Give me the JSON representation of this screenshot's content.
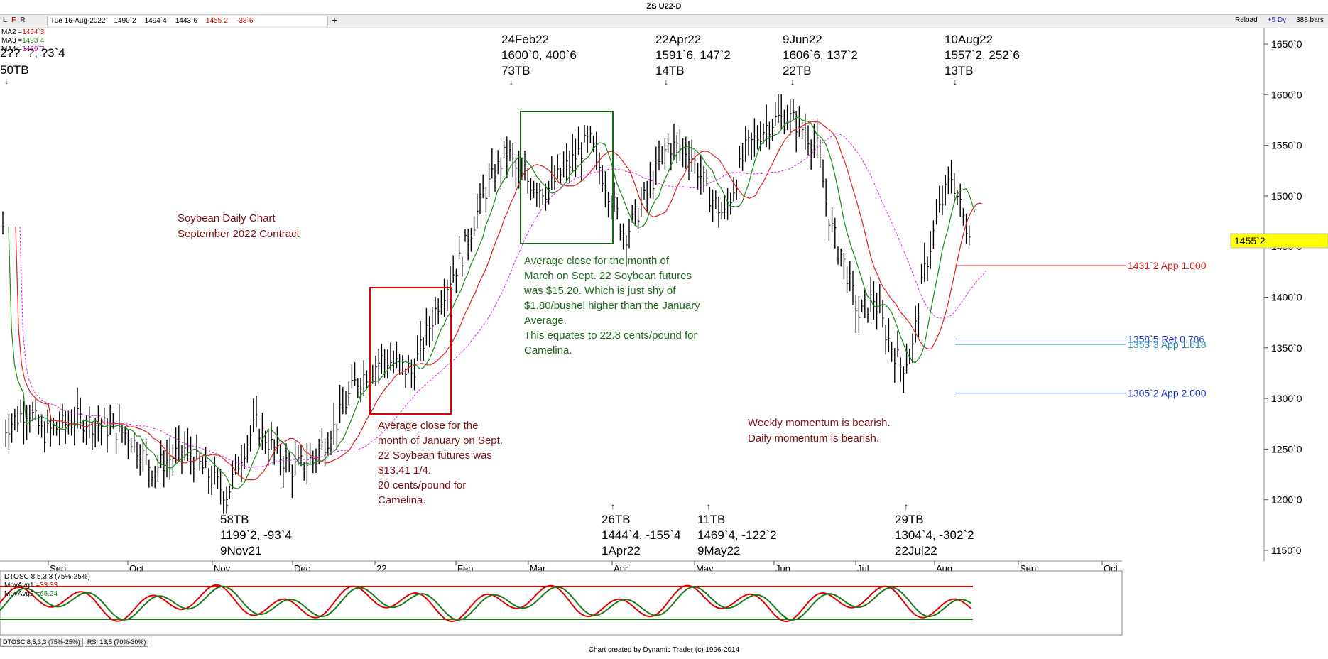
{
  "window": {
    "title": "ZS U22-D"
  },
  "toolbar": {
    "lfr": [
      "L",
      "F",
      "R"
    ],
    "quote": {
      "date": "Tue 16-Aug-2022",
      "open": "1490`2",
      "high": "1494`4",
      "low": "1443`6",
      "close": "1455`2",
      "change": "-38`6"
    },
    "reload_label": "Reload",
    "scroll_label": "+5 Dy",
    "bars_label": "388 bars"
  },
  "ma_panel": [
    {
      "label": "MA2 =",
      "value": "1454`3",
      "color": "#d00000"
    },
    {
      "label": "MA3 =",
      "value": "1493`4",
      "color": "#1a8a1a"
    },
    {
      "label": "MA4 =",
      "value": "1429`7",
      "color": "#d000d0"
    }
  ],
  "price_axis": {
    "ticks": [
      "1650`0",
      "1600`0",
      "1550`0",
      "1500`0",
      "1450`0",
      "1400`0",
      "1350`0",
      "1300`0",
      "1250`0",
      "1200`0",
      "1150`0"
    ],
    "current_price": "1455`2",
    "current_color": "#ffff00"
  },
  "time_axis": [
    "Sep",
    "Oct",
    "Nov",
    "Dec",
    "22",
    "Feb",
    "Mar",
    "Apr",
    "May",
    "Jun",
    "Jul",
    "Aug",
    "Sep",
    "Oct"
  ],
  "chart_title_lines": [
    "Soybean Daily Chart",
    "September 2022 Contract"
  ],
  "pivot_labels": [
    {
      "lines": [
        "2?? `?, ?3`4",
        "50TB"
      ]
    },
    {
      "lines": [
        "24Feb22",
        "1600`0, 400`6",
        "73TB"
      ]
    },
    {
      "lines": [
        "22Apr22",
        "1591`6, 147`2",
        "14TB"
      ]
    },
    {
      "lines": [
        "9Jun22",
        "1606`6, 137`2",
        "22TB"
      ]
    },
    {
      "lines": [
        "10Aug22",
        "1557`2, 252`6",
        "13TB"
      ]
    },
    {
      "lines": [
        "58TB",
        "1199`2, -93`4",
        "9Nov21"
      ]
    },
    {
      "lines": [
        "26TB",
        "1444`4, -155`4",
        "1Apr22"
      ]
    },
    {
      "lines": [
        "11TB",
        "1469`4, -122`2",
        "9May22"
      ]
    },
    {
      "lines": [
        "29TB",
        "1304`4, -302`2",
        "22Jul22"
      ]
    }
  ],
  "annotations": {
    "march": [
      "Average close for the month of",
      "March on Sept. 22 Soybean futures",
      "was $15.20. Which is just shy of",
      "$1.80/bushel higher than the January",
      "Average.",
      "This equates to 22.8 cents/pound for",
      "Camelina."
    ],
    "january": [
      "Average close for the",
      "month of January on Sept.",
      "22 Soybean futures was",
      "$13.41 1/4.",
      "20 cents/pound for",
      "Camelina."
    ],
    "momentum": [
      "Weekly momentum is bearish.",
      "Daily momentum is bearish."
    ]
  },
  "target_levels": [
    {
      "label": "1431`2 App 1.000",
      "price": 1431.25,
      "color": "#e02020"
    },
    {
      "label": "1358`5 Ret 0.786",
      "price": 1358.6,
      "color": "#1a37c4"
    },
    {
      "label": "1353`3 App 1.618",
      "price": 1353.4,
      "color": "#2a8aa0"
    },
    {
      "label": "1305`2 App 2.000",
      "price": 1305.25,
      "color": "#1a37c4"
    }
  ],
  "oscillator": {
    "legend": [
      {
        "label": "DTOSC 8,5,3,3 (75%-25%)",
        "color": "#000000"
      },
      {
        "label": "MovAvg1 =",
        "value": "33.33",
        "color": "#d00000"
      },
      {
        "label": "MovAvg2 =",
        "value": "65.24",
        "color": "#1a8a1a"
      }
    ],
    "tabs": [
      "DTOSC 8,5,3,3 (75%-25%)",
      "RSI 13,5 (70%-30%)"
    ]
  },
  "footer": "Chart created by Dynamic Trader  (c)  1996-2014",
  "chart_data": {
    "type": "line",
    "title": "ZS U22-D",
    "x": [
      "Sep-21",
      "Oct-21",
      "Nov-21",
      "Dec-21",
      "Jan-22",
      "Feb-22",
      "Mar-22",
      "Apr-22",
      "May-22",
      "Jun-22",
      "Jul-22",
      "Aug-22"
    ],
    "series": [
      {
        "name": "Close",
        "values": [
          1275,
          1245,
          1225,
          1260,
          1330,
          1490,
          1520,
          1560,
          1530,
          1575,
          1360,
          1455
        ]
      }
    ],
    "ylim": [
      1150,
      1650
    ],
    "pivots": [
      {
        "date": "9Nov21",
        "price": 1199.25
      },
      {
        "date": "24Feb22",
        "price": 1600.0
      },
      {
        "date": "1Apr22",
        "price": 1444.5
      },
      {
        "date": "22Apr22",
        "price": 1591.75
      },
      {
        "date": "9May22",
        "price": 1469.5
      },
      {
        "date": "9Jun22",
        "price": 1606.75
      },
      {
        "date": "22Jul22",
        "price": 1304.5
      },
      {
        "date": "10Aug22",
        "price": 1557.25
      }
    ]
  }
}
